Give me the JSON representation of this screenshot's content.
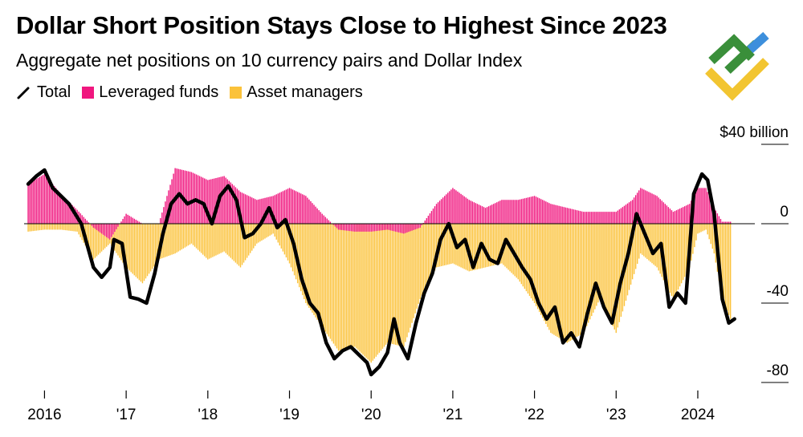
{
  "header": {
    "title": "Dollar Short Position Stays Close to Highest Since 2023",
    "subtitle": "Aggregate net positions on 10 currency pairs and Dollar Index"
  },
  "legend": {
    "total": "Total",
    "leveraged": "Leveraged funds",
    "asset": "Asset managers"
  },
  "colors": {
    "total": "#000000",
    "leveraged": "#f0177f",
    "asset": "#fbc23a",
    "logo_green": "#3a8f3a",
    "logo_blue": "#3d8fdc",
    "logo_yellow": "#f2c531"
  },
  "chart_data": {
    "type": "bar",
    "title": "Dollar Short Position Stays Close to Highest Since 2023",
    "subtitle": "Aggregate net positions on 10 currency pairs and Dollar Index",
    "unit_label": "$40 billion",
    "ylim": [
      -82,
      42
    ],
    "yticks": [
      {
        "value": 40,
        "label": "$40 billion"
      },
      {
        "value": 0,
        "label": "0"
      },
      {
        "value": -40,
        "label": "-40"
      },
      {
        "value": -80,
        "label": "-80"
      }
    ],
    "xlim": [
      2015.75,
      2024.6
    ],
    "xticks": [
      {
        "value": 2016.0,
        "label": "2016"
      },
      {
        "value": 2017.0,
        "label": "'17"
      },
      {
        "value": 2018.0,
        "label": "'18"
      },
      {
        "value": 2019.0,
        "label": "'19"
      },
      {
        "value": 2020.0,
        "label": "'20"
      },
      {
        "value": 2021.0,
        "label": "'21"
      },
      {
        "value": 2022.0,
        "label": "'22"
      },
      {
        "value": 2023.0,
        "label": "'23"
      },
      {
        "value": 2024.0,
        "label": "2024"
      }
    ],
    "legend_position": "top-left",
    "series": [
      {
        "name": "Total",
        "kind": "line",
        "points": [
          [
            2015.8,
            20
          ],
          [
            2015.9,
            24
          ],
          [
            2016.0,
            27
          ],
          [
            2016.1,
            18
          ],
          [
            2016.2,
            14
          ],
          [
            2016.3,
            10
          ],
          [
            2016.45,
            0
          ],
          [
            2016.6,
            -22
          ],
          [
            2016.7,
            -27
          ],
          [
            2016.8,
            -22
          ],
          [
            2016.85,
            -8
          ],
          [
            2016.95,
            -10
          ],
          [
            2017.05,
            -37
          ],
          [
            2017.15,
            -38
          ],
          [
            2017.25,
            -40
          ],
          [
            2017.35,
            -25
          ],
          [
            2017.45,
            -5
          ],
          [
            2017.55,
            10
          ],
          [
            2017.65,
            15
          ],
          [
            2017.75,
            10
          ],
          [
            2017.85,
            12
          ],
          [
            2017.95,
            10
          ],
          [
            2018.05,
            0
          ],
          [
            2018.15,
            14
          ],
          [
            2018.25,
            19
          ],
          [
            2018.35,
            12
          ],
          [
            2018.45,
            -7
          ],
          [
            2018.55,
            -5
          ],
          [
            2018.65,
            0
          ],
          [
            2018.75,
            8
          ],
          [
            2018.85,
            -2
          ],
          [
            2018.95,
            2
          ],
          [
            2019.05,
            -10
          ],
          [
            2019.15,
            -28
          ],
          [
            2019.25,
            -40
          ],
          [
            2019.35,
            -45
          ],
          [
            2019.45,
            -60
          ],
          [
            2019.55,
            -68
          ],
          [
            2019.65,
            -64
          ],
          [
            2019.75,
            -62
          ],
          [
            2019.85,
            -66
          ],
          [
            2019.95,
            -70
          ],
          [
            2020.0,
            -76
          ],
          [
            2020.1,
            -72
          ],
          [
            2020.2,
            -65
          ],
          [
            2020.28,
            -48
          ],
          [
            2020.35,
            -60
          ],
          [
            2020.45,
            -68
          ],
          [
            2020.55,
            -50
          ],
          [
            2020.65,
            -35
          ],
          [
            2020.75,
            -25
          ],
          [
            2020.85,
            -8
          ],
          [
            2020.95,
            0
          ],
          [
            2021.05,
            -12
          ],
          [
            2021.15,
            -8
          ],
          [
            2021.25,
            -22
          ],
          [
            2021.35,
            -10
          ],
          [
            2021.45,
            -18
          ],
          [
            2021.55,
            -20
          ],
          [
            2021.65,
            -8
          ],
          [
            2021.75,
            -15
          ],
          [
            2021.85,
            -22
          ],
          [
            2021.95,
            -28
          ],
          [
            2022.05,
            -40
          ],
          [
            2022.15,
            -48
          ],
          [
            2022.25,
            -42
          ],
          [
            2022.35,
            -60
          ],
          [
            2022.45,
            -55
          ],
          [
            2022.55,
            -62
          ],
          [
            2022.65,
            -45
          ],
          [
            2022.75,
            -30
          ],
          [
            2022.85,
            -42
          ],
          [
            2022.95,
            -50
          ],
          [
            2023.05,
            -30
          ],
          [
            2023.15,
            -15
          ],
          [
            2023.25,
            5
          ],
          [
            2023.35,
            -5
          ],
          [
            2023.45,
            -15
          ],
          [
            2023.55,
            -10
          ],
          [
            2023.65,
            -42
          ],
          [
            2023.75,
            -35
          ],
          [
            2023.85,
            -40
          ],
          [
            2023.95,
            15
          ],
          [
            2024.05,
            25
          ],
          [
            2024.12,
            22
          ],
          [
            2024.2,
            5
          ],
          [
            2024.3,
            -38
          ],
          [
            2024.38,
            -50
          ],
          [
            2024.45,
            -48
          ]
        ]
      },
      {
        "name": "Leveraged funds",
        "kind": "bar",
        "points": [
          [
            2015.8,
            20
          ],
          [
            2016.0,
            25
          ],
          [
            2016.2,
            15
          ],
          [
            2016.4,
            7
          ],
          [
            2016.6,
            -2
          ],
          [
            2016.8,
            -8
          ],
          [
            2017.0,
            5
          ],
          [
            2017.2,
            0
          ],
          [
            2017.4,
            0
          ],
          [
            2017.6,
            28
          ],
          [
            2017.8,
            26
          ],
          [
            2018.0,
            22
          ],
          [
            2018.2,
            24
          ],
          [
            2018.4,
            16
          ],
          [
            2018.6,
            12
          ],
          [
            2018.8,
            14
          ],
          [
            2019.0,
            18
          ],
          [
            2019.2,
            14
          ],
          [
            2019.4,
            5
          ],
          [
            2019.6,
            -3
          ],
          [
            2019.8,
            -4
          ],
          [
            2020.0,
            -4
          ],
          [
            2020.2,
            -3
          ],
          [
            2020.4,
            -5
          ],
          [
            2020.6,
            -2
          ],
          [
            2020.8,
            10
          ],
          [
            2021.0,
            18
          ],
          [
            2021.2,
            12
          ],
          [
            2021.4,
            8
          ],
          [
            2021.6,
            12
          ],
          [
            2021.8,
            12
          ],
          [
            2022.0,
            14
          ],
          [
            2022.2,
            10
          ],
          [
            2022.4,
            8
          ],
          [
            2022.6,
            6
          ],
          [
            2022.8,
            6
          ],
          [
            2023.0,
            6
          ],
          [
            2023.2,
            12
          ],
          [
            2023.3,
            18
          ],
          [
            2023.5,
            14
          ],
          [
            2023.7,
            6
          ],
          [
            2023.9,
            10
          ],
          [
            2024.0,
            18
          ],
          [
            2024.1,
            18
          ],
          [
            2024.2,
            8
          ],
          [
            2024.3,
            1
          ],
          [
            2024.4,
            1
          ]
        ]
      },
      {
        "name": "Asset managers",
        "kind": "bar",
        "points": [
          [
            2015.8,
            -4
          ],
          [
            2016.0,
            -3
          ],
          [
            2016.2,
            -3
          ],
          [
            2016.4,
            -4
          ],
          [
            2016.6,
            -18
          ],
          [
            2016.8,
            -10
          ],
          [
            2017.0,
            -22
          ],
          [
            2017.2,
            -30
          ],
          [
            2017.4,
            -18
          ],
          [
            2017.6,
            -15
          ],
          [
            2017.8,
            -10
          ],
          [
            2018.0,
            -18
          ],
          [
            2018.2,
            -14
          ],
          [
            2018.4,
            -22
          ],
          [
            2018.6,
            -10
          ],
          [
            2018.8,
            -5
          ],
          [
            2019.0,
            -20
          ],
          [
            2019.2,
            -40
          ],
          [
            2019.4,
            -52
          ],
          [
            2019.6,
            -64
          ],
          [
            2019.8,
            -62
          ],
          [
            2020.0,
            -70
          ],
          [
            2020.2,
            -60
          ],
          [
            2020.4,
            -62
          ],
          [
            2020.6,
            -38
          ],
          [
            2020.8,
            -22
          ],
          [
            2021.0,
            -20
          ],
          [
            2021.2,
            -24
          ],
          [
            2021.4,
            -22
          ],
          [
            2021.6,
            -20
          ],
          [
            2021.8,
            -28
          ],
          [
            2022.0,
            -40
          ],
          [
            2022.2,
            -55
          ],
          [
            2022.4,
            -60
          ],
          [
            2022.6,
            -55
          ],
          [
            2022.8,
            -38
          ],
          [
            2023.0,
            -55
          ],
          [
            2023.2,
            -28
          ],
          [
            2023.3,
            -15
          ],
          [
            2023.5,
            -22
          ],
          [
            2023.7,
            -38
          ],
          [
            2023.9,
            -22
          ],
          [
            2024.0,
            -5
          ],
          [
            2024.1,
            -3
          ],
          [
            2024.2,
            -15
          ],
          [
            2024.3,
            -38
          ],
          [
            2024.4,
            -48
          ]
        ]
      }
    ]
  }
}
